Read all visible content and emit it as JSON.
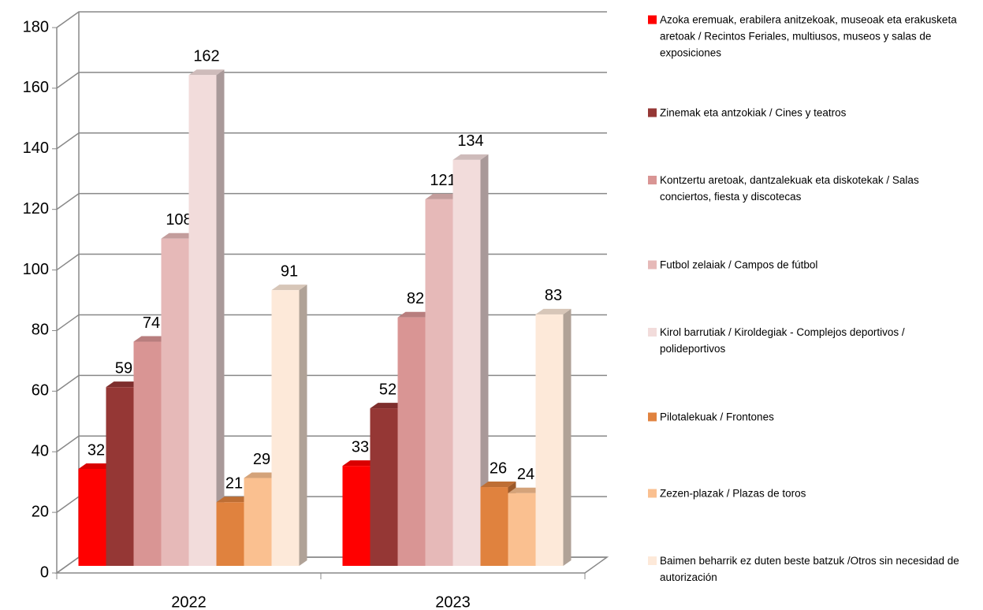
{
  "chart_data": {
    "type": "bar",
    "categories": [
      "2022",
      "2023"
    ],
    "ylim": [
      0,
      180
    ],
    "yticks": [
      0,
      20,
      40,
      60,
      80,
      100,
      120,
      140,
      160,
      180
    ],
    "grid": true,
    "series": [
      {
        "name": "Azoka eremuak, erabilera anitzekoak, museoak  eta erakusketa aretoak / Recintos Feriales, multiusos, museos y salas de exposiciones",
        "color": "#ff0000",
        "values": [
          32,
          33
        ]
      },
      {
        "name": "Zinemak eta antzokiak  / Cines y teatros",
        "color": "#953735",
        "values": [
          59,
          52
        ]
      },
      {
        "name": "Kontzertu aretoak, dantzalekuak eta diskotekak / Salas conciertos, fiesta y discotecas",
        "color": "#d99594",
        "values": [
          74,
          82
        ]
      },
      {
        "name": "Futbol zelaiak  / Campos de fútbol",
        "color": "#e6b9b8",
        "values": [
          108,
          121
        ]
      },
      {
        "name": "Kirol barrutiak / Kiroldegiak - Complejos deportivos / polideportivos",
        "color": "#f2dcdb",
        "values": [
          162,
          134
        ]
      },
      {
        "name": "Pilotalekuak  / Frontones",
        "color": "#e0823e",
        "values": [
          21,
          26
        ]
      },
      {
        "name": "Zezen-plazak  / Plazas de toros",
        "color": "#fac090",
        "values": [
          29,
          24
        ]
      },
      {
        "name": "Baimen beharrik ez duten beste batzuk /Otros sin necesidad  de autorización",
        "color": "#fde9d9",
        "values": [
          91,
          83
        ]
      }
    ]
  }
}
